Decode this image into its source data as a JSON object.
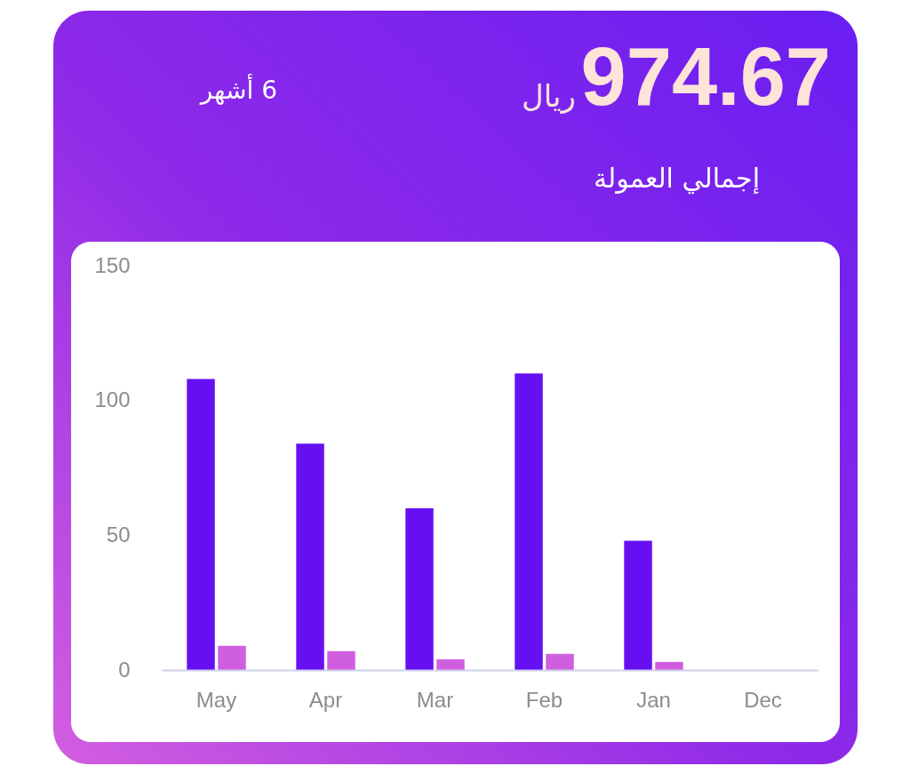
{
  "chart_data": {
    "type": "bar",
    "title": "إجمالي العمولة",
    "annotations": [
      "974.67",
      "ريال",
      "6 أشهر"
    ],
    "categories": [
      "May",
      "Apr",
      "Mar",
      "Feb",
      "Jan",
      "Dec"
    ],
    "series": [
      {
        "color": "#6610f2",
        "values": [
          108,
          84,
          60,
          110,
          48,
          0
        ]
      },
      {
        "color": "#cf5fdf",
        "values": [
          9,
          7,
          4,
          6,
          3,
          0
        ]
      }
    ],
    "ylim": [
      0,
      150
    ],
    "yticks": [
      0,
      50,
      100,
      150
    ],
    "grid": false,
    "legend": false
  }
}
